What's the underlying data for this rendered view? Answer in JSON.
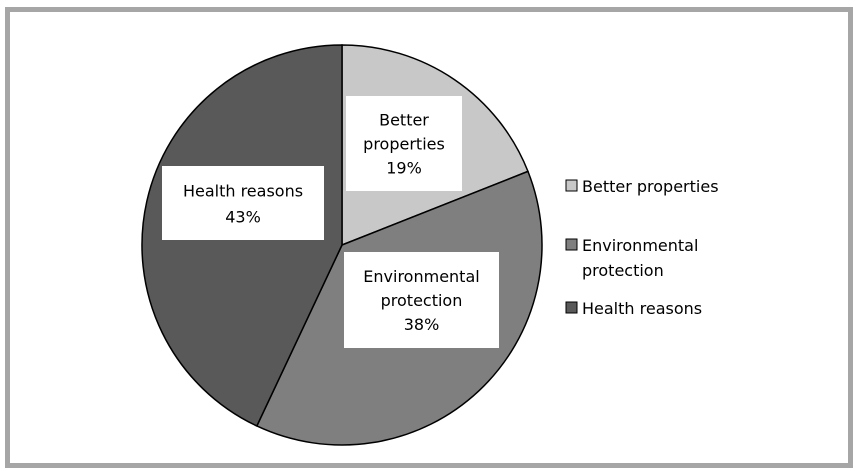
{
  "chart_data": {
    "type": "pie",
    "title": "",
    "slices": [
      {
        "label": "Better properties",
        "value": 19,
        "value_label": "19%",
        "slice_text": [
          "Better",
          "properties",
          "19%"
        ],
        "legend_text": [
          "Better properties"
        ],
        "color": "#c8c8c8"
      },
      {
        "label": "Environmental protection",
        "value": 38,
        "value_label": "38%",
        "slice_text": [
          "Environmental",
          "protection",
          "38%"
        ],
        "legend_text": [
          "Environmental",
          "protection"
        ],
        "color": "#7f7f7f"
      },
      {
        "label": "Health reasons",
        "value": 43,
        "value_label": "43%",
        "slice_text": [
          "Health reasons",
          "43%"
        ],
        "legend_text": [
          "Health reasons"
        ],
        "color": "#595959"
      }
    ],
    "legend_position": "right",
    "start_angle": "12 o'clock, clockwise"
  }
}
